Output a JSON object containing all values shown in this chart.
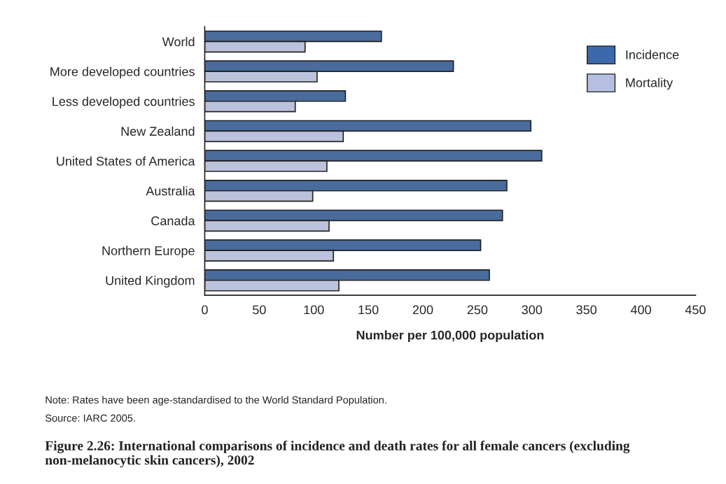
{
  "chart_data": {
    "type": "bar",
    "orientation": "horizontal",
    "title": "Figure 2.26: International comparisons of incidence and death rates for all female cancers (excluding non-melanocytic skin cancers), 2002",
    "xlabel": "Number per 100,000 population",
    "categories": [
      "World",
      "More developed countries",
      "Less developed countries",
      "New Zealand",
      "United States of America",
      "Australia",
      "Canada",
      "Northern Europe",
      "United Kingdom"
    ],
    "series": [
      {
        "name": "Incidence",
        "color": "#3c69ab",
        "values": [
          162,
          228,
          129,
          299,
          309,
          277,
          273,
          253,
          261
        ]
      },
      {
        "name": "Mortality",
        "color": "#b6bfe0",
        "values": [
          92,
          103,
          83,
          127,
          112,
          99,
          114,
          118,
          123
        ]
      }
    ],
    "xlim": [
      0,
      450
    ],
    "xticks": [
      0,
      50,
      100,
      150,
      200,
      250,
      300,
      350,
      400,
      450
    ],
    "grid": false,
    "legend": "top right",
    "annotations": [
      "Note: Rates have been age-standardised to the World Standard Population.",
      "Source: IARC 2005."
    ]
  }
}
